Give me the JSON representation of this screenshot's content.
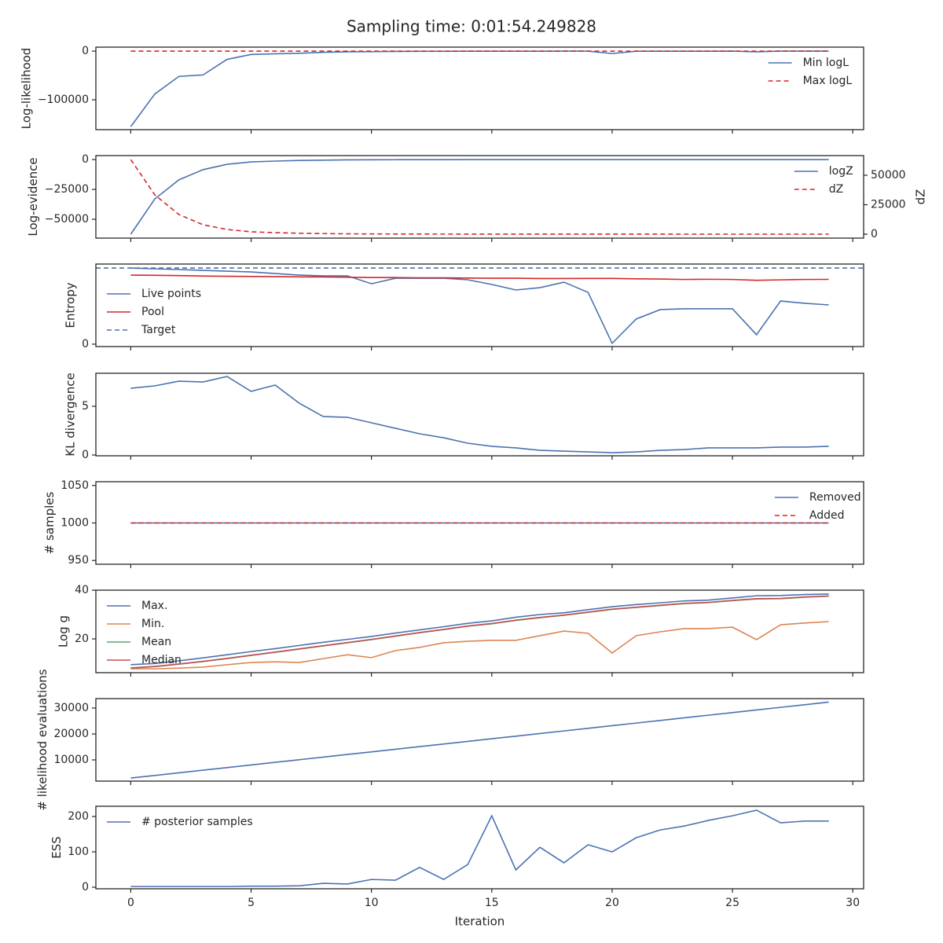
{
  "title": "Sampling time: 0:01:54.249828",
  "chart_data": [
    {
      "type": "line",
      "ylabel": "Log-likelihood",
      "legend": "upper right",
      "x": [
        0,
        1,
        2,
        3,
        4,
        5,
        6,
        7,
        8,
        9,
        10,
        11,
        12,
        13,
        14,
        15,
        16,
        17,
        18,
        19,
        20,
        21,
        22,
        23,
        24,
        25,
        26,
        27,
        28,
        29
      ],
      "xlim": [
        -1.45,
        30.45
      ],
      "ylim": [
        -161300,
        8100
      ],
      "yticks": [
        {
          "value": -100000,
          "label": "−100000"
        },
        0
      ],
      "series": [
        {
          "name": "Min logL",
          "color": "#4c72b0",
          "style": "solid",
          "values": [
            -155000,
            -88000,
            -52000,
            -49000,
            -17000,
            -7000,
            -5500,
            -4500,
            -2500,
            -1500,
            -1200,
            -700,
            -500,
            -400,
            -300,
            -250,
            -200,
            -200,
            -150,
            -150,
            -5000,
            -300,
            -250,
            -200,
            -200,
            -150,
            -1500,
            -150,
            -100,
            -100
          ]
        },
        {
          "name": "Max logL",
          "color": "#d62728",
          "style": "dashed",
          "values": [
            0,
            0,
            0,
            0,
            0,
            0,
            0,
            0,
            0,
            0,
            0,
            0,
            0,
            0,
            0,
            0,
            0,
            0,
            0,
            0,
            0,
            0,
            0,
            0,
            0,
            0,
            0,
            0,
            0,
            0
          ]
        }
      ]
    },
    {
      "type": "line",
      "ylabel": "Log-evidence",
      "y2label": "dZ",
      "legend": "upper right",
      "x": [
        0,
        1,
        2,
        3,
        4,
        5,
        6,
        7,
        8,
        9,
        10,
        11,
        12,
        13,
        14,
        15,
        16,
        17,
        18,
        19,
        20,
        21,
        22,
        23,
        24,
        25,
        26,
        27,
        28,
        29
      ],
      "xlim": [
        -1.45,
        30.45
      ],
      "ylim": [
        -65800,
        3300
      ],
      "yticks": [
        {
          "value": -50000,
          "label": "−50000"
        },
        {
          "value": -25000,
          "label": "−25000"
        },
        0
      ],
      "y2lim": [
        -3333,
        66667
      ],
      "y2ticks": [
        0,
        25000,
        50000
      ],
      "series": [
        {
          "name": "logZ",
          "color": "#4c72b0",
          "style": "solid",
          "values": [
            -62500,
            -33000,
            -17000,
            -8500,
            -4000,
            -2000,
            -1300,
            -800,
            -500,
            -300,
            -200,
            -150,
            -100,
            -80,
            -60,
            -50,
            -40,
            -30,
            -25,
            -20,
            -20,
            -15,
            -15,
            -10,
            -10,
            -10,
            -10,
            -5,
            -5,
            -5
          ]
        },
        {
          "name": "dZ",
          "color": "#d62728",
          "style": "dashed",
          "axis": "y2",
          "values": [
            63300,
            33300,
            16700,
            8000,
            4000,
            2000,
            1300,
            800,
            500,
            300,
            200,
            150,
            100,
            80,
            60,
            50,
            40,
            30,
            25,
            20,
            20,
            15,
            15,
            10,
            10,
            10,
            10,
            5,
            5,
            5
          ]
        }
      ]
    },
    {
      "type": "line",
      "ylabel": "Entropy",
      "legend": "lower left",
      "x": [
        0,
        1,
        2,
        3,
        4,
        5,
        6,
        7,
        8,
        9,
        10,
        11,
        12,
        13,
        14,
        15,
        16,
        17,
        18,
        19,
        20,
        21,
        22,
        23,
        24,
        25,
        26,
        27,
        28,
        29
      ],
      "xlim": [
        -1.45,
        30.45
      ],
      "ylim": [
        -0.24,
        8
      ],
      "yticks": [
        0
      ],
      "series": [
        {
          "name": "Live points",
          "color": "#4c72b0",
          "style": "solid",
          "values": [
            7.6,
            7.52,
            7.45,
            7.37,
            7.29,
            7.21,
            7.05,
            6.9,
            6.82,
            6.82,
            6.03,
            6.58,
            6.58,
            6.58,
            6.43,
            5.96,
            5.41,
            5.64,
            6.19,
            5.17,
            0.08,
            2.51,
            3.45,
            3.53,
            3.53,
            3.53,
            0.94,
            4.31,
            4.08,
            3.92
          ]
        },
        {
          "name": "Pool",
          "color": "#d62728",
          "style": "solid",
          "values": [
            6.9,
            6.88,
            6.85,
            6.8,
            6.78,
            6.76,
            6.74,
            6.72,
            6.71,
            6.68,
            6.65,
            6.65,
            6.62,
            6.62,
            6.6,
            6.58,
            6.58,
            6.55,
            6.55,
            6.56,
            6.56,
            6.52,
            6.5,
            6.46,
            6.48,
            6.46,
            6.38,
            6.42,
            6.46,
            6.47
          ]
        }
      ],
      "hlines": [
        {
          "name": "Target",
          "color": "#4c72b0",
          "style": "dashed",
          "value": 7.6
        }
      ]
    },
    {
      "type": "line",
      "ylabel": "KL divergence",
      "x": [
        0,
        1,
        2,
        3,
        4,
        5,
        6,
        7,
        8,
        9,
        10,
        11,
        12,
        13,
        14,
        15,
        16,
        17,
        18,
        19,
        20,
        21,
        22,
        23,
        24,
        25,
        26,
        27,
        28,
        29
      ],
      "xlim": [
        -1.45,
        30.45
      ],
      "ylim": [
        -0.08,
        8.39
      ],
      "yticks": [
        0,
        5
      ],
      "series": [
        {
          "color": "#4c72b0",
          "style": "solid",
          "values": [
            6.85,
            7.1,
            7.58,
            7.5,
            8.06,
            6.53,
            7.18,
            5.32,
            3.95,
            3.87,
            3.31,
            2.74,
            2.18,
            1.77,
            1.21,
            0.89,
            0.73,
            0.48,
            0.4,
            0.32,
            0.24,
            0.32,
            0.48,
            0.56,
            0.73,
            0.73,
            0.73,
            0.81,
            0.81,
            0.89
          ]
        }
      ]
    },
    {
      "type": "line",
      "ylabel": "# samples",
      "legend": "upper right",
      "x": [
        0,
        1,
        2,
        3,
        4,
        5,
        6,
        7,
        8,
        9,
        10,
        11,
        12,
        13,
        14,
        15,
        16,
        17,
        18,
        19,
        20,
        21,
        22,
        23,
        24,
        25,
        26,
        27,
        28,
        29
      ],
      "xlim": [
        -1.45,
        30.45
      ],
      "ylim": [
        945,
        1055
      ],
      "yticks": [
        950,
        1000,
        1050
      ],
      "series": [
        {
          "name": "Removed",
          "color": "#4c72b0",
          "style": "solid",
          "values": [
            1000,
            1000,
            1000,
            1000,
            1000,
            1000,
            1000,
            1000,
            1000,
            1000,
            1000,
            1000,
            1000,
            1000,
            1000,
            1000,
            1000,
            1000,
            1000,
            1000,
            1000,
            1000,
            1000,
            1000,
            1000,
            1000,
            1000,
            1000,
            1000,
            1000
          ]
        },
        {
          "name": "Added",
          "color": "#d62728",
          "style": "dashed",
          "values": [
            1000,
            1000,
            1000,
            1000,
            1000,
            1000,
            1000,
            1000,
            1000,
            1000,
            1000,
            1000,
            1000,
            1000,
            1000,
            1000,
            1000,
            1000,
            1000,
            1000,
            1000,
            1000,
            1000,
            1000,
            1000,
            1000,
            1000,
            1000,
            1000,
            1000
          ]
        }
      ]
    },
    {
      "type": "line",
      "ylabel": "Log g",
      "legend": "upper left",
      "x": [
        0,
        1,
        2,
        3,
        4,
        5,
        6,
        7,
        8,
        9,
        10,
        11,
        12,
        13,
        14,
        15,
        16,
        17,
        18,
        19,
        20,
        21,
        22,
        23,
        24,
        25,
        26,
        27,
        28,
        29
      ],
      "xlim": [
        -1.45,
        30.45
      ],
      "ylim": [
        6.13,
        40
      ],
      "yticks": [
        20,
        40
      ],
      "series": [
        {
          "name": "Max.",
          "color": "#4c72b0",
          "style": "solid",
          "values": [
            9.4,
            9.9,
            11.0,
            12.2,
            13.5,
            14.8,
            16.0,
            17.3,
            18.6,
            19.8,
            21.0,
            22.4,
            23.7,
            25.0,
            26.4,
            27.4,
            28.9,
            30.0,
            30.7,
            32.0,
            33.2,
            34.1,
            34.8,
            35.6,
            35.9,
            36.8,
            37.7,
            37.8,
            38.2,
            38.4
          ]
        },
        {
          "name": "Min.",
          "color": "#dd8452",
          "style": "solid",
          "values": [
            7.7,
            7.7,
            8.0,
            8.4,
            9.4,
            10.3,
            10.6,
            10.3,
            11.9,
            13.5,
            12.3,
            15.2,
            16.5,
            18.4,
            19.0,
            19.4,
            19.4,
            21.3,
            23.2,
            22.3,
            14.2,
            21.3,
            22.9,
            24.2,
            24.2,
            24.8,
            19.7,
            25.8,
            26.5,
            27.1
          ]
        },
        {
          "name": "Mean",
          "color": "#55a868",
          "style": "solid",
          "values": [
            8.0,
            8.6,
            9.6,
            10.7,
            11.9,
            13.2,
            14.5,
            15.8,
            17.1,
            18.4,
            19.7,
            21.1,
            22.5,
            23.8,
            25.2,
            26.2,
            27.6,
            28.7,
            29.7,
            30.9,
            32.1,
            32.9,
            33.7,
            34.5,
            34.9,
            35.7,
            36.4,
            36.5,
            37.1,
            37.5
          ]
        },
        {
          "name": "Median",
          "color": "#c44e52",
          "style": "solid",
          "values": [
            8.1,
            8.7,
            9.7,
            10.8,
            12.0,
            13.3,
            14.6,
            15.9,
            17.2,
            18.5,
            19.8,
            21.2,
            22.6,
            23.9,
            25.3,
            26.3,
            27.7,
            28.8,
            29.8,
            31.0,
            32.2,
            33.0,
            33.8,
            34.6,
            35.0,
            35.8,
            36.5,
            36.6,
            37.2,
            37.6
          ]
        }
      ]
    },
    {
      "type": "line",
      "ylabel": "# likelihood evaluations",
      "x": [
        0,
        1,
        2,
        3,
        4,
        5,
        6,
        7,
        8,
        9,
        10,
        11,
        12,
        13,
        14,
        15,
        16,
        17,
        18,
        19,
        20,
        21,
        22,
        23,
        24,
        25,
        26,
        27,
        28,
        29
      ],
      "xlim": [
        -1.45,
        30.45
      ],
      "ylim": [
        1818,
        33636
      ],
      "yticks": [
        10000,
        20000,
        30000
      ],
      "series": [
        {
          "color": "#4c72b0",
          "style": "solid",
          "values": [
            3000,
            4010,
            5020,
            6030,
            7040,
            8050,
            9060,
            10070,
            11080,
            12090,
            13100,
            14110,
            15120,
            16130,
            17140,
            18150,
            19160,
            20170,
            21180,
            22190,
            23200,
            24210,
            25220,
            26230,
            27240,
            28250,
            29260,
            30270,
            31280,
            32290
          ]
        }
      ]
    },
    {
      "type": "line",
      "ylabel": "ESS",
      "xlabel": "Iteration",
      "legend": "upper left",
      "x": [
        0,
        1,
        2,
        3,
        4,
        5,
        6,
        7,
        8,
        9,
        10,
        11,
        12,
        13,
        14,
        15,
        16,
        17,
        18,
        19,
        20,
        21,
        22,
        23,
        24,
        25,
        26,
        27,
        28,
        29
      ],
      "xlim": [
        -1.45,
        30.45
      ],
      "xticks": [
        0,
        5,
        10,
        15,
        20,
        25,
        30
      ],
      "ylim": [
        -4.4,
        228.9
      ],
      "yticks": [
        0,
        100,
        200
      ],
      "series": [
        {
          "name": "# posterior samples",
          "color": "#4c72b0",
          "style": "solid",
          "values": [
            2,
            2,
            2,
            2,
            2,
            3,
            3,
            4,
            11,
            9,
            22,
            20,
            56,
            22,
            64,
            202,
            49,
            113,
            69,
            120,
            100,
            140,
            162,
            173,
            189,
            202,
            218,
            182,
            187,
            187
          ]
        }
      ]
    }
  ]
}
